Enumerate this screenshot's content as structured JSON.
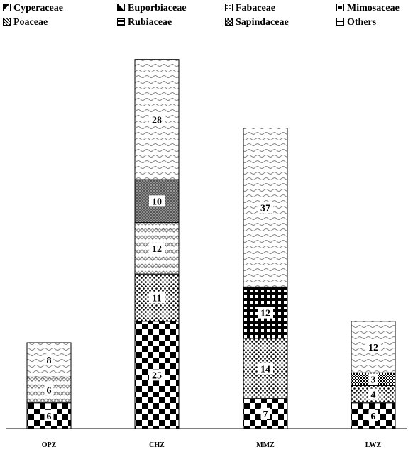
{
  "chart_data": {
    "type": "bar",
    "stacked": true,
    "categories": [
      "OPZ",
      "CHZ",
      "MMZ",
      "LWZ"
    ],
    "legend_position": "top",
    "grid": false,
    "ylim": [
      0,
      90
    ],
    "series": [
      {
        "name": "Cyperaceae",
        "pattern": "corner",
        "values": [
          0,
          0,
          0,
          0
        ]
      },
      {
        "name": "Euporbiaceae",
        "pattern": "diagonal-block",
        "values": [
          0,
          0,
          0,
          0
        ]
      },
      {
        "name": "Fabaceae",
        "pattern": "dotted-box",
        "values": [
          0,
          0,
          0,
          0
        ]
      },
      {
        "name": "Mimosaceae",
        "pattern": "dark-block",
        "values": [
          0,
          0,
          0,
          0
        ]
      },
      {
        "name": "Sapindaceae",
        "pattern": "checker",
        "values": [
          6,
          25,
          7,
          6
        ]
      },
      {
        "name": "Poaceae",
        "pattern": "dots",
        "values": [
          0,
          11,
          14,
          4
        ]
      },
      {
        "name": "Rubiaceae",
        "pattern": "dense-grid",
        "values": [
          0,
          0,
          0,
          3
        ]
      },
      {
        "name": "Others",
        "pattern": "checker-dark-blank",
        "values": [
          0,
          0,
          12,
          0
        ]
      },
      {
        "name": "zigzag",
        "pattern": "zigzag",
        "values": [
          6,
          12,
          0,
          0
        ]
      },
      {
        "name": "dark-grid",
        "pattern": "darkgrid",
        "values": [
          0,
          10,
          0,
          0
        ]
      },
      {
        "name": "waves",
        "pattern": "waves",
        "values": [
          8,
          28,
          37,
          12
        ]
      }
    ],
    "legend": [
      {
        "label": "Cyperaceae",
        "pattern": "corner"
      },
      {
        "label": "Euporbiaceae",
        "pattern": "diagonal-block"
      },
      {
        "label": "Fabaceae",
        "pattern": "dotted-box"
      },
      {
        "label": "Mimosaceae",
        "pattern": "dark-block"
      },
      {
        "label": "Poaceae",
        "pattern": "hatch"
      },
      {
        "label": "Rubiaceae",
        "pattern": "dense-grid"
      },
      {
        "label": "Sapindaceae",
        "pattern": "checker"
      },
      {
        "label": "Others",
        "pattern": "box"
      }
    ]
  }
}
